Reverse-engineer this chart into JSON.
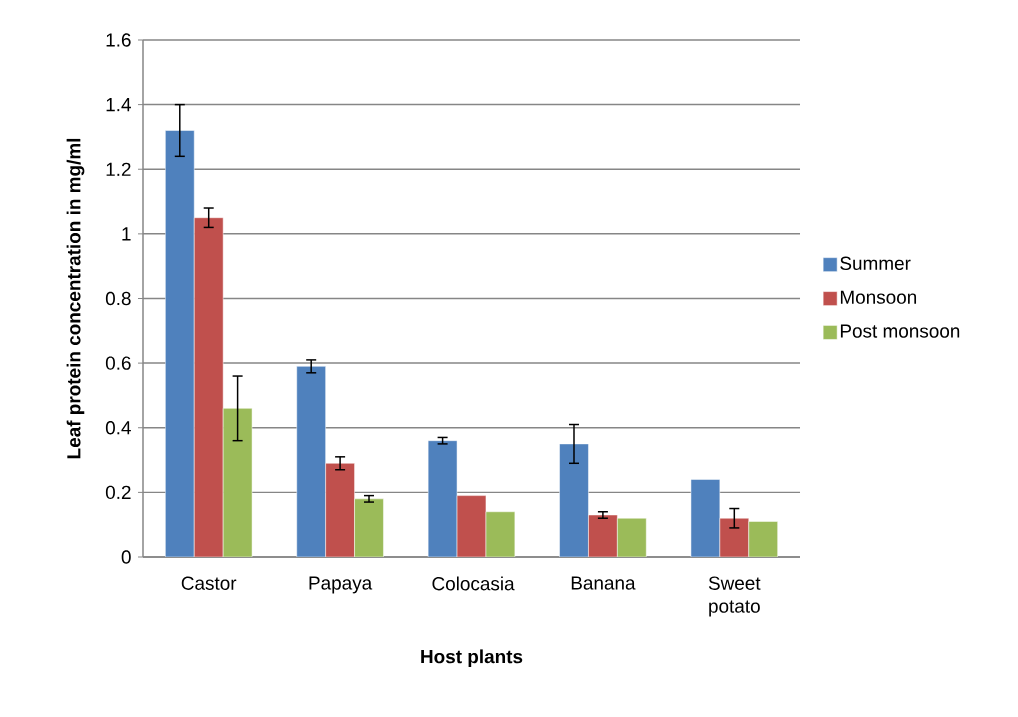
{
  "chart_data": {
    "type": "bar",
    "xlabel": "Host plants",
    "ylabel": "Leaf protein concentration in mg/ml",
    "categories": [
      "Castor",
      "Papaya",
      "Colocasia",
      "Banana",
      "Sweet potato"
    ],
    "series": [
      {
        "name": "Summer",
        "color": "#4f81bd",
        "values": [
          1.32,
          0.59,
          0.36,
          0.35,
          0.24
        ],
        "errors": [
          0.08,
          0.02,
          0.01,
          0.06,
          null
        ]
      },
      {
        "name": "Monsoon",
        "color": "#c0504d",
        "values": [
          1.05,
          0.29,
          0.19,
          0.13,
          0.12
        ],
        "errors": [
          0.03,
          0.02,
          null,
          0.01,
          0.03
        ]
      },
      {
        "name": "Post monsoon",
        "color": "#9bbb59",
        "values": [
          0.46,
          0.18,
          0.14,
          0.12,
          0.11
        ],
        "errors": [
          0.1,
          0.01,
          null,
          null,
          null
        ]
      }
    ],
    "ylim": [
      0,
      1.6
    ],
    "yticks": [
      0,
      0.2,
      0.4,
      0.6,
      0.8,
      1,
      1.2,
      1.4,
      1.6
    ],
    "grid": "y",
    "legend": "right"
  }
}
